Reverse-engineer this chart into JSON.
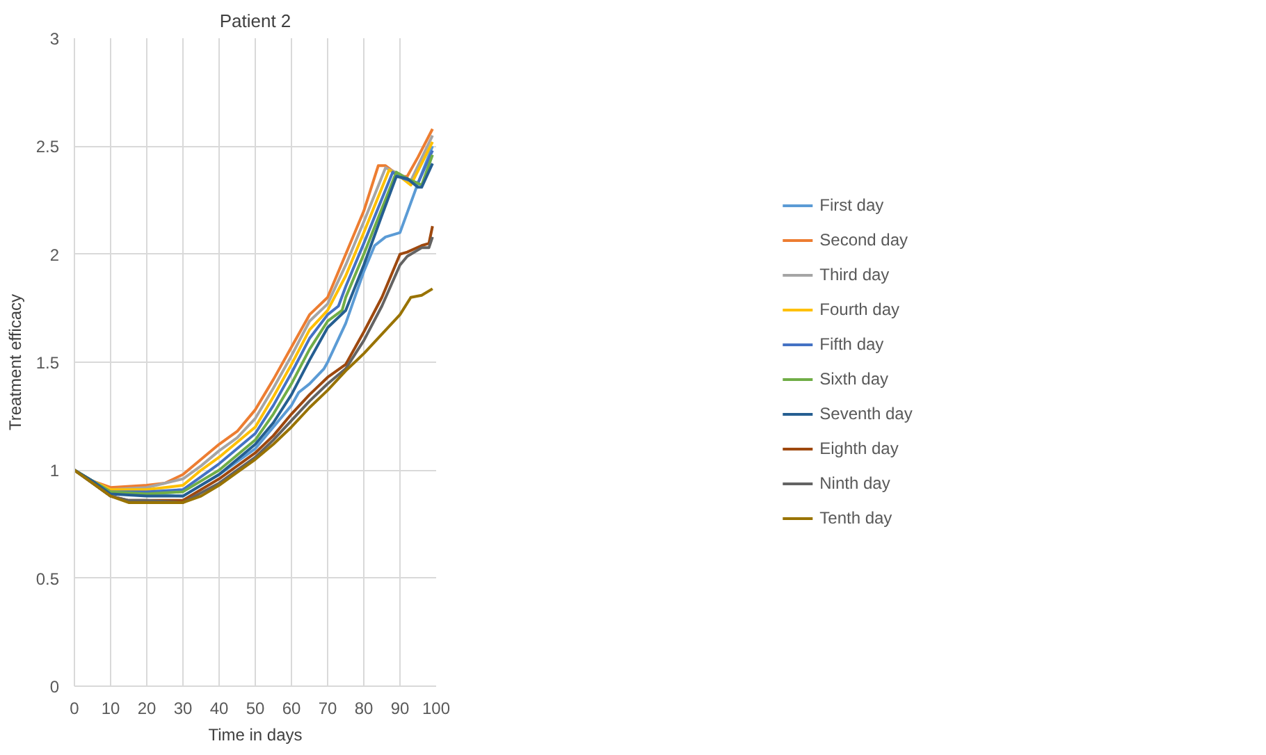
{
  "chart_data": {
    "type": "line",
    "title": "Patient 2",
    "xlabel": "Time in days",
    "ylabel": "Treatment efficacy",
    "xlim": [
      0,
      100
    ],
    "ylim": [
      0,
      3
    ],
    "xticks": [
      0,
      10,
      20,
      30,
      40,
      50,
      60,
      70,
      80,
      90,
      100
    ],
    "yticks": [
      0,
      0.5,
      1,
      1.5,
      2,
      2.5,
      3
    ],
    "grid": true,
    "legend": "right",
    "marker": "none",
    "line_style": "solid",
    "series": [
      {
        "name": "First day",
        "color": "#5b9bd5",
        "x": [
          0,
          5,
          10,
          20,
          30,
          40,
          50,
          55,
          60,
          62,
          65,
          69,
          70,
          75,
          80,
          83,
          86,
          90,
          95,
          99
        ],
        "values": [
          1,
          0.95,
          0.9,
          0.89,
          0.88,
          0.98,
          1.1,
          1.2,
          1.3,
          1.36,
          1.4,
          1.47,
          1.5,
          1.68,
          1.92,
          2.04,
          2.08,
          2.1,
          2.33,
          2.5
        ]
      },
      {
        "name": "Second day",
        "color": "#ed7d31",
        "x": [
          0,
          5,
          10,
          20,
          25,
          30,
          35,
          40,
          45,
          50,
          55,
          60,
          65,
          70,
          75,
          80,
          84,
          86,
          90,
          92,
          95,
          99
        ],
        "values": [
          1,
          0.95,
          0.92,
          0.93,
          0.94,
          0.98,
          1.05,
          1.12,
          1.18,
          1.28,
          1.42,
          1.57,
          1.72,
          1.8,
          2.0,
          2.2,
          2.41,
          2.41,
          2.36,
          2.36,
          2.45,
          2.58
        ]
      },
      {
        "name": "Third day",
        "color": "#a5a5a5",
        "x": [
          0,
          5,
          10,
          20,
          30,
          35,
          40,
          45,
          50,
          55,
          60,
          65,
          70,
          75,
          80,
          86,
          90,
          93,
          99
        ],
        "values": [
          1,
          0.95,
          0.91,
          0.92,
          0.96,
          1.02,
          1.09,
          1.15,
          1.24,
          1.38,
          1.53,
          1.69,
          1.77,
          1.95,
          2.15,
          2.4,
          2.37,
          2.34,
          2.55
        ]
      },
      {
        "name": "Fourth day",
        "color": "#ffc000",
        "x": [
          0,
          5,
          10,
          20,
          30,
          35,
          40,
          45,
          50,
          55,
          60,
          65,
          70,
          75,
          80,
          87,
          90,
          93,
          99
        ],
        "values": [
          1,
          0.95,
          0.91,
          0.91,
          0.93,
          1.0,
          1.06,
          1.13,
          1.2,
          1.34,
          1.49,
          1.65,
          1.74,
          1.9,
          2.1,
          2.39,
          2.36,
          2.32,
          2.52
        ]
      },
      {
        "name": "Fifth day",
        "color": "#4472c4",
        "x": [
          0,
          5,
          10,
          20,
          30,
          40,
          50,
          55,
          60,
          65,
          70,
          73,
          75,
          80,
          88,
          91,
          95,
          99
        ],
        "values": [
          1,
          0.95,
          0.9,
          0.9,
          0.91,
          1.03,
          1.17,
          1.3,
          1.45,
          1.61,
          1.72,
          1.76,
          1.85,
          2.05,
          2.38,
          2.35,
          2.33,
          2.48
        ]
      },
      {
        "name": "Sixth day",
        "color": "#70ad47",
        "x": [
          0,
          5,
          10,
          20,
          30,
          40,
          50,
          55,
          60,
          65,
          70,
          74,
          75,
          80,
          89,
          92,
          96,
          99
        ],
        "values": [
          1,
          0.95,
          0.9,
          0.89,
          0.9,
          1.0,
          1.14,
          1.26,
          1.4,
          1.56,
          1.69,
          1.74,
          1.8,
          2.0,
          2.38,
          2.35,
          2.32,
          2.46
        ]
      },
      {
        "name": "Seventh day",
        "color": "#255e91",
        "x": [
          0,
          5,
          10,
          20,
          30,
          40,
          50,
          55,
          60,
          65,
          70,
          75,
          80,
          85,
          89,
          92,
          95,
          96,
          99
        ],
        "values": [
          1,
          0.95,
          0.89,
          0.88,
          0.88,
          0.98,
          1.12,
          1.22,
          1.35,
          1.51,
          1.66,
          1.74,
          1.95,
          2.18,
          2.36,
          2.35,
          2.31,
          2.31,
          2.42
        ]
      },
      {
        "name": "Eighth day",
        "color": "#9e480e",
        "x": [
          0,
          5,
          10,
          15,
          20,
          30,
          40,
          50,
          55,
          60,
          65,
          70,
          75,
          80,
          85,
          90,
          92,
          96,
          98,
          99
        ],
        "values": [
          1,
          0.94,
          0.88,
          0.86,
          0.86,
          0.86,
          0.96,
          1.08,
          1.16,
          1.26,
          1.35,
          1.43,
          1.49,
          1.64,
          1.8,
          2.0,
          2.01,
          2.04,
          2.05,
          2.13
        ]
      },
      {
        "name": "Ninth day",
        "color": "#636363",
        "x": [
          0,
          5,
          10,
          15,
          20,
          30,
          40,
          50,
          55,
          60,
          65,
          70,
          75,
          80,
          85,
          90,
          92,
          96,
          98,
          99
        ],
        "values": [
          1,
          0.94,
          0.88,
          0.86,
          0.86,
          0.85,
          0.94,
          1.06,
          1.14,
          1.23,
          1.32,
          1.4,
          1.47,
          1.6,
          1.76,
          1.95,
          1.99,
          2.03,
          2.03,
          2.08
        ]
      },
      {
        "name": "Tenth day",
        "color": "#997300",
        "x": [
          0,
          5,
          10,
          15,
          20,
          30,
          35,
          40,
          45,
          50,
          55,
          60,
          65,
          70,
          75,
          80,
          85,
          90,
          93,
          96,
          99
        ],
        "values": [
          1,
          0.94,
          0.88,
          0.85,
          0.85,
          0.85,
          0.88,
          0.93,
          0.99,
          1.05,
          1.12,
          1.2,
          1.29,
          1.37,
          1.46,
          1.54,
          1.63,
          1.72,
          1.8,
          1.81,
          1.84
        ]
      }
    ]
  }
}
